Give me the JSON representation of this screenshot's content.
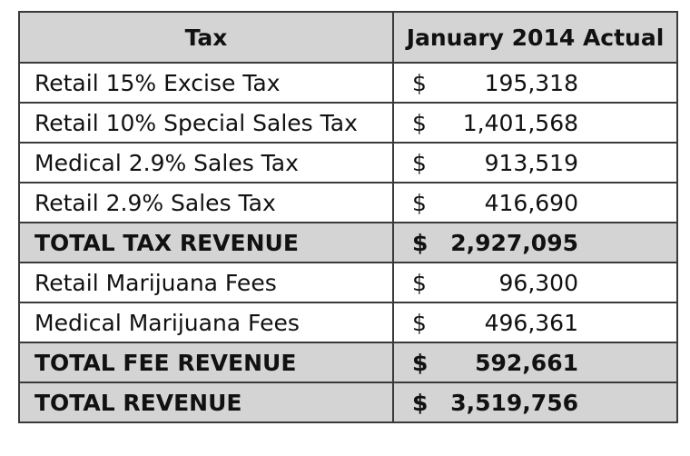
{
  "table": {
    "headers": [
      "Tax",
      "January 2014 Actual"
    ],
    "currency_symbol": "$",
    "rows": [
      {
        "label": "Retail 15% Excise Tax",
        "amount": "195,318",
        "total": false
      },
      {
        "label": "Retail 10% Special Sales Tax",
        "amount": "1,401,568",
        "total": false
      },
      {
        "label": "Medical 2.9% Sales Tax",
        "amount": "913,519",
        "total": false
      },
      {
        "label": "Retail 2.9% Sales Tax",
        "amount": "416,690",
        "total": false
      },
      {
        "label": "TOTAL TAX REVENUE",
        "amount": "2,927,095",
        "total": true
      },
      {
        "label": "Retail Marijuana Fees",
        "amount": "96,300",
        "total": false
      },
      {
        "label": "Medical Marijuana Fees",
        "amount": "496,361",
        "total": false
      },
      {
        "label": "TOTAL FEE REVENUE",
        "amount": "592,661",
        "total": true
      },
      {
        "label": "TOTAL REVENUE",
        "amount": "3,519,756",
        "total": true
      }
    ]
  },
  "colors": {
    "header_fill": "#d4d4d4",
    "total_fill": "#d4d4d4",
    "border": "#3a3a3a"
  }
}
